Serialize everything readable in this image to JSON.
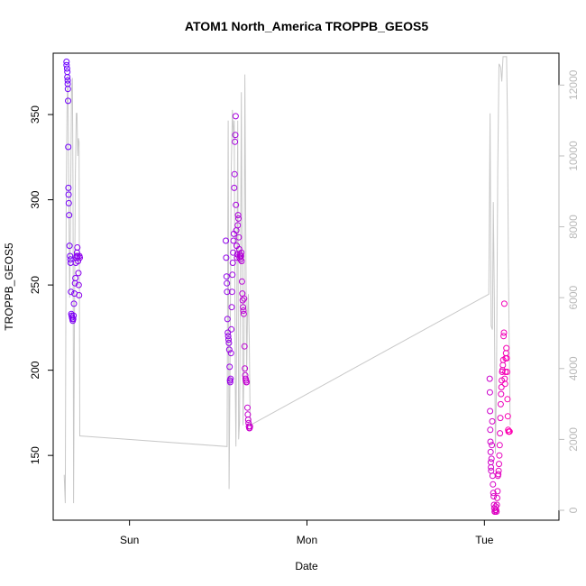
{
  "chart_data": {
    "type": "scatter",
    "title": "ATOM1 North_America TROPPB_GEOS5",
    "xlabel": "Date",
    "ylabel": "TROPPB_GEOS5",
    "x_ticks": [
      {
        "label": "Sun",
        "day": 1.0
      },
      {
        "label": "Mon",
        "day": 2.0
      },
      {
        "label": "Tue",
        "day": 3.0
      }
    ],
    "xlim_day": [
      0.57,
      3.42
    ],
    "ylim": [
      112,
      386
    ],
    "y_ticks": [
      150,
      200,
      250,
      300,
      350
    ],
    "y2lim": [
      -280,
      12900
    ],
    "y2_ticks": [
      0,
      2000,
      4000,
      6000,
      8000,
      10000,
      12000
    ],
    "y2_color": "#bdbdbd",
    "line_color": "#c8c8c8",
    "point_color_start": "#6a00ff",
    "point_color_end": "#ff00b0",
    "points": [
      {
        "day": 0.645,
        "y": 381
      },
      {
        "day": 0.645,
        "y": 379
      },
      {
        "day": 0.648,
        "y": 377
      },
      {
        "day": 0.65,
        "y": 375
      },
      {
        "day": 0.65,
        "y": 372
      },
      {
        "day": 0.652,
        "y": 370
      },
      {
        "day": 0.652,
        "y": 368
      },
      {
        "day": 0.653,
        "y": 365
      },
      {
        "day": 0.654,
        "y": 358
      },
      {
        "day": 0.655,
        "y": 331
      },
      {
        "day": 0.656,
        "y": 307
      },
      {
        "day": 0.657,
        "y": 303
      },
      {
        "day": 0.658,
        "y": 298
      },
      {
        "day": 0.66,
        "y": 291
      },
      {
        "day": 0.662,
        "y": 273
      },
      {
        "day": 0.665,
        "y": 267
      },
      {
        "day": 0.667,
        "y": 265
      },
      {
        "day": 0.668,
        "y": 263
      },
      {
        "day": 0.67,
        "y": 246
      },
      {
        "day": 0.672,
        "y": 233
      },
      {
        "day": 0.674,
        "y": 232
      },
      {
        "day": 0.676,
        "y": 231
      },
      {
        "day": 0.678,
        "y": 230
      },
      {
        "day": 0.68,
        "y": 229
      },
      {
        "day": 0.683,
        "y": 230
      },
      {
        "day": 0.685,
        "y": 232
      },
      {
        "day": 0.687,
        "y": 239
      },
      {
        "day": 0.69,
        "y": 245
      },
      {
        "day": 0.693,
        "y": 251
      },
      {
        "day": 0.695,
        "y": 254
      },
      {
        "day": 0.697,
        "y": 263
      },
      {
        "day": 0.7,
        "y": 266
      },
      {
        "day": 0.702,
        "y": 267
      },
      {
        "day": 0.704,
        "y": 269
      },
      {
        "day": 0.706,
        "y": 272
      },
      {
        "day": 0.708,
        "y": 267
      },
      {
        "day": 0.71,
        "y": 264
      },
      {
        "day": 0.712,
        "y": 257
      },
      {
        "day": 0.714,
        "y": 250
      },
      {
        "day": 0.716,
        "y": 244
      },
      {
        "day": 0.718,
        "y": 267
      },
      {
        "day": 0.72,
        "y": 266
      },
      {
        "day": 1.543,
        "y": 276
      },
      {
        "day": 1.545,
        "y": 266
      },
      {
        "day": 1.547,
        "y": 255
      },
      {
        "day": 1.549,
        "y": 251
      },
      {
        "day": 1.55,
        "y": 246
      },
      {
        "day": 1.552,
        "y": 230
      },
      {
        "day": 1.554,
        "y": 222
      },
      {
        "day": 1.556,
        "y": 220
      },
      {
        "day": 1.558,
        "y": 218
      },
      {
        "day": 1.56,
        "y": 216
      },
      {
        "day": 1.562,
        "y": 212
      },
      {
        "day": 1.564,
        "y": 202
      },
      {
        "day": 1.566,
        "y": 194
      },
      {
        "day": 1.568,
        "y": 193
      },
      {
        "day": 1.57,
        "y": 195
      },
      {
        "day": 1.572,
        "y": 210
      },
      {
        "day": 1.574,
        "y": 224
      },
      {
        "day": 1.576,
        "y": 237
      },
      {
        "day": 1.578,
        "y": 246
      },
      {
        "day": 1.58,
        "y": 256
      },
      {
        "day": 1.582,
        "y": 263
      },
      {
        "day": 1.584,
        "y": 269
      },
      {
        "day": 1.586,
        "y": 276
      },
      {
        "day": 1.588,
        "y": 280
      },
      {
        "day": 1.59,
        "y": 307
      },
      {
        "day": 1.592,
        "y": 315
      },
      {
        "day": 1.594,
        "y": 334
      },
      {
        "day": 1.596,
        "y": 338
      },
      {
        "day": 1.598,
        "y": 349
      },
      {
        "day": 1.6,
        "y": 297
      },
      {
        "day": 1.602,
        "y": 282
      },
      {
        "day": 1.604,
        "y": 273
      },
      {
        "day": 1.606,
        "y": 266
      },
      {
        "day": 1.608,
        "y": 268
      },
      {
        "day": 1.61,
        "y": 285
      },
      {
        "day": 1.612,
        "y": 291
      },
      {
        "day": 1.614,
        "y": 289
      },
      {
        "day": 1.616,
        "y": 278
      },
      {
        "day": 1.618,
        "y": 271
      },
      {
        "day": 1.62,
        "y": 266
      },
      {
        "day": 1.622,
        "y": 268
      },
      {
        "day": 1.624,
        "y": 267
      },
      {
        "day": 1.626,
        "y": 265
      },
      {
        "day": 1.628,
        "y": 267
      },
      {
        "day": 1.63,
        "y": 269
      },
      {
        "day": 1.632,
        "y": 264
      },
      {
        "day": 1.634,
        "y": 252
      },
      {
        "day": 1.636,
        "y": 245
      },
      {
        "day": 1.638,
        "y": 241
      },
      {
        "day": 1.64,
        "y": 237
      },
      {
        "day": 1.642,
        "y": 235
      },
      {
        "day": 1.644,
        "y": 233
      },
      {
        "day": 1.646,
        "y": 242
      },
      {
        "day": 1.648,
        "y": 214
      },
      {
        "day": 1.65,
        "y": 201
      },
      {
        "day": 1.652,
        "y": 197
      },
      {
        "day": 1.654,
        "y": 195
      },
      {
        "day": 1.656,
        "y": 194
      },
      {
        "day": 1.658,
        "y": 193
      },
      {
        "day": 1.66,
        "y": 193
      },
      {
        "day": 1.665,
        "y": 178
      },
      {
        "day": 1.667,
        "y": 174
      },
      {
        "day": 1.669,
        "y": 171
      },
      {
        "day": 1.671,
        "y": 169
      },
      {
        "day": 1.673,
        "y": 167
      },
      {
        "day": 1.675,
        "y": 166
      },
      {
        "day": 1.677,
        "y": 166
      },
      {
        "day": 1.679,
        "y": 167
      },
      {
        "day": 3.03,
        "y": 195
      },
      {
        "day": 3.031,
        "y": 187
      },
      {
        "day": 3.032,
        "y": 176
      },
      {
        "day": 3.033,
        "y": 165
      },
      {
        "day": 3.034,
        "y": 158
      },
      {
        "day": 3.035,
        "y": 152
      },
      {
        "day": 3.036,
        "y": 146
      },
      {
        "day": 3.037,
        "y": 143
      },
      {
        "day": 3.038,
        "y": 141
      },
      {
        "day": 3.04,
        "y": 148
      },
      {
        "day": 3.042,
        "y": 156
      },
      {
        "day": 3.044,
        "y": 170
      },
      {
        "day": 3.046,
        "y": 138
      },
      {
        "day": 3.048,
        "y": 133
      },
      {
        "day": 3.05,
        "y": 128
      },
      {
        "day": 3.052,
        "y": 126
      },
      {
        "day": 3.054,
        "y": 121
      },
      {
        "day": 3.056,
        "y": 119
      },
      {
        "day": 3.058,
        "y": 117
      },
      {
        "day": 3.06,
        "y": 117
      },
      {
        "day": 3.062,
        "y": 118
      },
      {
        "day": 3.064,
        "y": 120
      },
      {
        "day": 3.066,
        "y": 118
      },
      {
        "day": 3.068,
        "y": 117
      },
      {
        "day": 3.07,
        "y": 121
      },
      {
        "day": 3.072,
        "y": 125
      },
      {
        "day": 3.074,
        "y": 129
      },
      {
        "day": 3.076,
        "y": 138
      },
      {
        "day": 3.078,
        "y": 139
      },
      {
        "day": 3.08,
        "y": 141
      },
      {
        "day": 3.082,
        "y": 145
      },
      {
        "day": 3.084,
        "y": 150
      },
      {
        "day": 3.086,
        "y": 156
      },
      {
        "day": 3.088,
        "y": 163
      },
      {
        "day": 3.09,
        "y": 172
      },
      {
        "day": 3.092,
        "y": 180
      },
      {
        "day": 3.094,
        "y": 186
      },
      {
        "day": 3.096,
        "y": 190
      },
      {
        "day": 3.098,
        "y": 194
      },
      {
        "day": 3.1,
        "y": 199
      },
      {
        "day": 3.102,
        "y": 200
      },
      {
        "day": 3.104,
        "y": 203
      },
      {
        "day": 3.106,
        "y": 206
      },
      {
        "day": 3.108,
        "y": 220
      },
      {
        "day": 3.11,
        "y": 222
      },
      {
        "day": 3.112,
        "y": 239
      },
      {
        "day": 3.114,
        "y": 195
      },
      {
        "day": 3.116,
        "y": 192
      },
      {
        "day": 3.118,
        "y": 199
      },
      {
        "day": 3.12,
        "y": 207
      },
      {
        "day": 3.122,
        "y": 210
      },
      {
        "day": 3.124,
        "y": 213
      },
      {
        "day": 3.126,
        "y": 207
      },
      {
        "day": 3.128,
        "y": 199
      },
      {
        "day": 3.13,
        "y": 183
      },
      {
        "day": 3.132,
        "y": 173
      },
      {
        "day": 3.134,
        "y": 165
      },
      {
        "day": 3.136,
        "y": 164
      },
      {
        "day": 3.138,
        "y": 164
      },
      {
        "day": 3.14,
        "y": 164
      },
      {
        "day": 3.142,
        "y": 164
      }
    ],
    "altitude_line": [
      {
        "day": 0.632,
        "y2": 1000
      },
      {
        "day": 0.638,
        "y2": 200
      },
      {
        "day": 0.643,
        "y2": 8500
      },
      {
        "day": 0.648,
        "y2": 11500
      },
      {
        "day": 0.653,
        "y2": 12300
      },
      {
        "day": 0.658,
        "y2": 9000
      },
      {
        "day": 0.663,
        "y2": 6000
      },
      {
        "day": 0.668,
        "y2": 8500
      },
      {
        "day": 0.673,
        "y2": 11800
      },
      {
        "day": 0.678,
        "y2": 12200
      },
      {
        "day": 0.682,
        "y2": 9000
      },
      {
        "day": 0.685,
        "y2": 200
      },
      {
        "day": 0.69,
        "y2": 5500
      },
      {
        "day": 0.695,
        "y2": 9500
      },
      {
        "day": 0.7,
        "y2": 11200
      },
      {
        "day": 0.704,
        "y2": 11200
      },
      {
        "day": 0.708,
        "y2": 10000
      },
      {
        "day": 0.712,
        "y2": 10500
      },
      {
        "day": 0.716,
        "y2": 10400
      },
      {
        "day": 0.72,
        "y2": 2100
      },
      {
        "day": 1.55,
        "y2": 1800
      },
      {
        "day": 1.556,
        "y2": 11000
      },
      {
        "day": 1.561,
        "y2": 600
      },
      {
        "day": 1.567,
        "y2": 4500
      },
      {
        "day": 1.573,
        "y2": 9500
      },
      {
        "day": 1.58,
        "y2": 11300
      },
      {
        "day": 1.586,
        "y2": 10500
      },
      {
        "day": 1.59,
        "y2": 11000
      },
      {
        "day": 1.596,
        "y2": 3500
      },
      {
        "day": 1.6,
        "y2": 1800
      },
      {
        "day": 1.605,
        "y2": 6000
      },
      {
        "day": 1.61,
        "y2": 11000
      },
      {
        "day": 1.615,
        "y2": 2000
      },
      {
        "day": 1.62,
        "y2": 2500
      },
      {
        "day": 1.625,
        "y2": 6500
      },
      {
        "day": 1.63,
        "y2": 11800
      },
      {
        "day": 1.635,
        "y2": 7000
      },
      {
        "day": 1.64,
        "y2": 2400
      },
      {
        "day": 1.645,
        "y2": 4000
      },
      {
        "day": 1.65,
        "y2": 12300
      },
      {
        "day": 1.655,
        "y2": 8000
      },
      {
        "day": 1.66,
        "y2": 3800
      },
      {
        "day": 1.665,
        "y2": 5500
      },
      {
        "day": 1.67,
        "y2": 6100
      },
      {
        "day": 1.675,
        "y2": 4800
      },
      {
        "day": 1.68,
        "y2": 2400
      },
      {
        "day": 3.025,
        "y2": 6100
      },
      {
        "day": 3.032,
        "y2": 11200
      },
      {
        "day": 3.038,
        "y2": 5200
      },
      {
        "day": 3.045,
        "y2": 5100
      },
      {
        "day": 3.05,
        "y2": 8700
      },
      {
        "day": 3.056,
        "y2": 6000
      },
      {
        "day": 3.062,
        "y2": 1600
      },
      {
        "day": 3.068,
        "y2": 3500
      },
      {
        "day": 3.075,
        "y2": 9600
      },
      {
        "day": 3.082,
        "y2": 12600
      },
      {
        "day": 3.092,
        "y2": 12500
      },
      {
        "day": 3.098,
        "y2": 12100
      },
      {
        "day": 3.105,
        "y2": 12800
      },
      {
        "day": 3.125,
        "y2": 12800
      },
      {
        "day": 3.13,
        "y2": 11000
      },
      {
        "day": 3.135,
        "y2": 7000
      },
      {
        "day": 3.14,
        "y2": 4500
      },
      {
        "day": 3.145,
        "y2": 2400
      }
    ]
  }
}
